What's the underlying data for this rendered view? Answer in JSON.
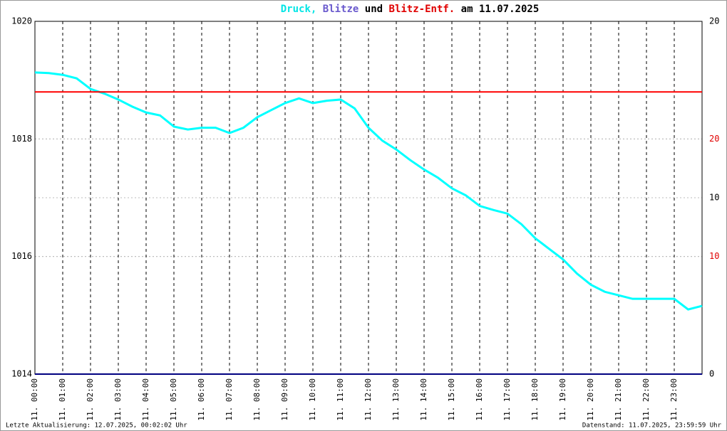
{
  "chart_data": {
    "type": "line",
    "title_parts": [
      {
        "text": "Druck,",
        "color": "#00e5e5"
      },
      {
        "text": "Blitze",
        "color": "#6a5acd"
      },
      {
        "text": "und",
        "color": "#000000"
      },
      {
        "text": "Blitz-Entf.",
        "color": "#e00000"
      },
      {
        "text": "am 11.07.2025",
        "color": "#000000"
      }
    ],
    "x": [
      0,
      0.5,
      1,
      1.5,
      2,
      2.5,
      3,
      3.5,
      4,
      4.5,
      5,
      5.5,
      6,
      6.5,
      7,
      7.5,
      8,
      8.5,
      9,
      9.5,
      10,
      10.5,
      11,
      11.5,
      12,
      12.5,
      13,
      13.5,
      14,
      14.5,
      15,
      15.5,
      16,
      16.5,
      17,
      17.5,
      18,
      18.5,
      19,
      19.5,
      20,
      20.5,
      21,
      21.5,
      22,
      22.5,
      23,
      23.5,
      24
    ],
    "series": [
      {
        "name": "Druck",
        "color": "#00ffff",
        "axis": "y",
        "values": [
          1019.13,
          1019.12,
          1019.09,
          1019.03,
          1018.85,
          1018.77,
          1018.67,
          1018.55,
          1018.45,
          1018.4,
          1018.21,
          1018.16,
          1018.19,
          1018.19,
          1018.1,
          1018.19,
          1018.37,
          1018.49,
          1018.61,
          1018.69,
          1018.61,
          1018.65,
          1018.67,
          1018.52,
          1018.19,
          1017.97,
          1017.82,
          1017.64,
          1017.48,
          1017.34,
          1017.16,
          1017.04,
          1016.86,
          1016.79,
          1016.73,
          1016.55,
          1016.31,
          1016.13,
          1015.95,
          1015.71,
          1015.52,
          1015.4,
          1015.34,
          1015.28,
          1015.28,
          1015.28,
          1015.28,
          1015.1,
          1015.16
        ]
      },
      {
        "name": "Blitze",
        "color": "#000080",
        "axis": "y2",
        "values": [
          0,
          0,
          0,
          0,
          0,
          0,
          0,
          0,
          0,
          0,
          0,
          0,
          0,
          0,
          0,
          0,
          0,
          0,
          0,
          0,
          0,
          0,
          0,
          0,
          0,
          0,
          0,
          0,
          0,
          0,
          0,
          0,
          0,
          0,
          0,
          0,
          0,
          0,
          0,
          0,
          0,
          0,
          0,
          0,
          0,
          0,
          0,
          0,
          0
        ]
      },
      {
        "name": "Blitz-Entf.",
        "color": "#ff0000",
        "axis": "y3",
        "values": [
          24,
          24,
          24,
          24,
          24,
          24,
          24,
          24,
          24,
          24,
          24,
          24,
          24,
          24,
          24,
          24,
          24,
          24,
          24,
          24,
          24,
          24,
          24,
          24,
          24,
          24,
          24,
          24,
          24,
          24,
          24,
          24,
          24,
          24,
          24,
          24,
          24,
          24,
          24,
          24,
          24,
          24,
          24,
          24,
          24,
          24,
          24,
          24,
          24
        ]
      }
    ],
    "xlim": [
      0,
      24
    ],
    "xticks": [
      {
        "value": 0,
        "label": "11. 00:00"
      },
      {
        "value": 1,
        "label": "11. 01:00"
      },
      {
        "value": 2,
        "label": "11. 02:00"
      },
      {
        "value": 3,
        "label": "11. 03:00"
      },
      {
        "value": 4,
        "label": "11. 04:00"
      },
      {
        "value": 5,
        "label": "11. 05:00"
      },
      {
        "value": 6,
        "label": "11. 06:00"
      },
      {
        "value": 7,
        "label": "11. 07:00"
      },
      {
        "value": 8,
        "label": "11. 08:00"
      },
      {
        "value": 9,
        "label": "11. 09:00"
      },
      {
        "value": 10,
        "label": "11. 10:00"
      },
      {
        "value": 11,
        "label": "11. 11:00"
      },
      {
        "value": 12,
        "label": "11. 12:00"
      },
      {
        "value": 13,
        "label": "11. 13:00"
      },
      {
        "value": 14,
        "label": "11. 14:00"
      },
      {
        "value": 15,
        "label": "11. 15:00"
      },
      {
        "value": 16,
        "label": "11. 16:00"
      },
      {
        "value": 17,
        "label": "11. 17:00"
      },
      {
        "value": 18,
        "label": "11. 18:00"
      },
      {
        "value": 19,
        "label": "11. 19:00"
      },
      {
        "value": 20,
        "label": "11. 20:00"
      },
      {
        "value": 21,
        "label": "11. 21:00"
      },
      {
        "value": 22,
        "label": "11. 22:00"
      },
      {
        "value": 23,
        "label": "11. 23:00"
      }
    ],
    "ylim": [
      1014,
      1020
    ],
    "yticks": [
      1014,
      1016,
      1018,
      1020
    ],
    "y2lim": [
      0,
      20
    ],
    "y2ticks": [
      0,
      10,
      20
    ],
    "y2_color": "#000000",
    "y3lim": [
      0,
      30
    ],
    "y3ticks": [
      10,
      20
    ],
    "y3_color": "#e00000",
    "grid": true,
    "footer_left": "Letzte Aktualisierung: 12.07.2025, 00:02:02 Uhr",
    "footer_right": "Datenstand: 11.07.2025, 23:59:59 Uhr"
  }
}
